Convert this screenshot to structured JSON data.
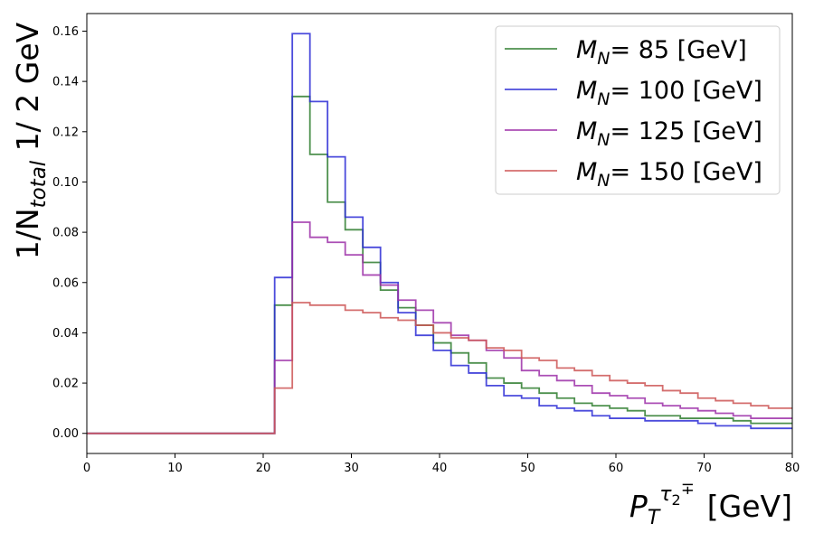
{
  "chart_data": {
    "type": "line",
    "drawstyle": "steps",
    "ylabel": "1/N_total  1/ 2 GeV",
    "ylabel_parts": {
      "prefix": "1/N",
      "sub": "total",
      "suffix": " 1/ 2 GeV"
    },
    "xlabel": "P_T^{τ2∓} [GeV]",
    "xlabel_parts": {
      "main": "P",
      "sub": "T",
      "sup_main": "τ",
      "sup_sub": "2",
      "sup_sign": "∓",
      "unit": "[GeV]"
    },
    "xlim": [
      0,
      80
    ],
    "ylim": [
      -0.008,
      0.167
    ],
    "x_ticks": [
      0,
      10,
      20,
      30,
      40,
      50,
      60,
      70,
      80
    ],
    "y_ticks": [
      0.0,
      0.02,
      0.04,
      0.06,
      0.08,
      0.1,
      0.12,
      0.14,
      0.16
    ],
    "y_tick_labels": [
      "0.00",
      "0.02",
      "0.04",
      "0.06",
      "0.08",
      "0.10",
      "0.12",
      "0.14",
      "0.16"
    ],
    "grid": false,
    "legend_position": "top-right",
    "bin_edges": [
      0,
      21.3,
      23.3,
      25.3,
      27.3,
      29.3,
      31.3,
      33.3,
      35.3,
      37.3,
      39.3,
      41.3,
      43.3,
      45.3,
      47.3,
      49.3,
      51.3,
      53.3,
      55.3,
      57.3,
      59.3,
      61.3,
      63.3,
      65.3,
      67.3,
      69.3,
      71.3,
      73.3,
      75.3,
      77.3,
      80
    ],
    "series": [
      {
        "label_var": "M",
        "label_sub": "N",
        "label_text": "=  85  [GeV]",
        "color": "#2e7d2e",
        "values": [
          0,
          0.051,
          0.134,
          0.111,
          0.092,
          0.081,
          0.068,
          0.057,
          0.05,
          0.043,
          0.036,
          0.032,
          0.028,
          0.022,
          0.02,
          0.018,
          0.016,
          0.014,
          0.012,
          0.011,
          0.01,
          0.009,
          0.007,
          0.007,
          0.006,
          0.006,
          0.006,
          0.005,
          0.004,
          0.004
        ]
      },
      {
        "label_var": "M",
        "label_sub": "N",
        "label_text": "= 100 [GeV]",
        "color": "#2b2bd6",
        "values": [
          0,
          0.062,
          0.159,
          0.132,
          0.11,
          0.086,
          0.074,
          0.06,
          0.048,
          0.039,
          0.033,
          0.027,
          0.024,
          0.019,
          0.015,
          0.014,
          0.011,
          0.01,
          0.009,
          0.007,
          0.006,
          0.006,
          0.005,
          0.005,
          0.005,
          0.004,
          0.003,
          0.003,
          0.002,
          0.002
        ]
      },
      {
        "label_var": "M",
        "label_sub": "N",
        "label_text": "= 125 [GeV]",
        "color": "#9c2fa8",
        "values": [
          0,
          0.029,
          0.084,
          0.078,
          0.076,
          0.071,
          0.063,
          0.059,
          0.053,
          0.049,
          0.044,
          0.039,
          0.037,
          0.033,
          0.03,
          0.025,
          0.023,
          0.021,
          0.019,
          0.016,
          0.015,
          0.014,
          0.012,
          0.011,
          0.01,
          0.009,
          0.008,
          0.007,
          0.006,
          0.006
        ]
      },
      {
        "label_var": "M",
        "label_sub": "N",
        "label_text": "= 150 [GeV]",
        "color": "#cc5555",
        "values": [
          0,
          0.018,
          0.052,
          0.051,
          0.051,
          0.049,
          0.048,
          0.046,
          0.045,
          0.043,
          0.04,
          0.038,
          0.037,
          0.034,
          0.033,
          0.03,
          0.029,
          0.026,
          0.025,
          0.023,
          0.021,
          0.02,
          0.019,
          0.017,
          0.016,
          0.014,
          0.013,
          0.012,
          0.011,
          0.01
        ]
      }
    ]
  }
}
